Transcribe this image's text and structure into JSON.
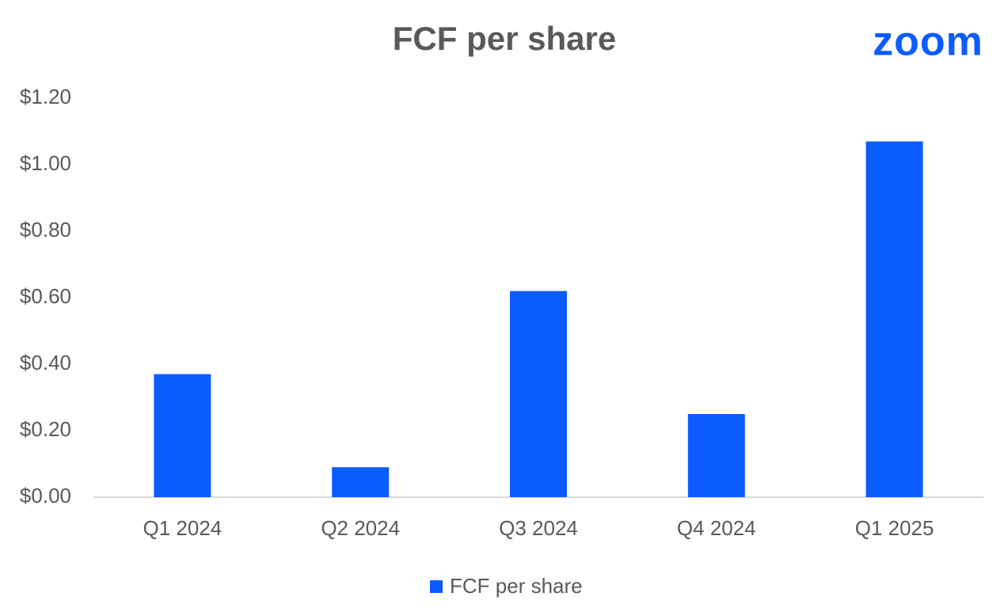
{
  "chart_data": {
    "type": "bar",
    "title": "FCF per share",
    "logo": "zoom",
    "categories": [
      "Q1 2024",
      "Q2 2024",
      "Q3 2024",
      "Q4 2024",
      "Q1 2025"
    ],
    "series": [
      {
        "name": "FCF per share",
        "color": "#0b5cff",
        "values": [
          0.37,
          0.09,
          0.62,
          0.25,
          1.07
        ]
      }
    ],
    "ylim": [
      0,
      1.2
    ],
    "yticks": [
      {
        "value": 0,
        "label": "$0.00"
      },
      {
        "value": 0.2,
        "label": "$0.20"
      },
      {
        "value": 0.4,
        "label": "$0.40"
      },
      {
        "value": 0.6,
        "label": "$0.60"
      },
      {
        "value": 0.8,
        "label": "$0.80"
      },
      {
        "value": 1.0,
        "label": "$1.00"
      },
      {
        "value": 1.2,
        "label": "$1.20"
      }
    ],
    "grid": false,
    "legend": "bottom"
  }
}
